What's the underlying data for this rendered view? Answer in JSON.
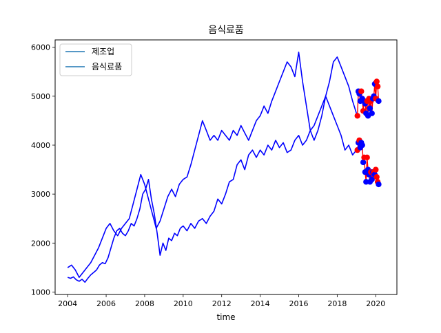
{
  "chart_data": {
    "type": "line",
    "title": "음식료품",
    "xlabel": "time",
    "ylabel": "",
    "xlim": [
      2003.35,
      2021.1
    ],
    "ylim": [
      950,
      6150
    ],
    "grid": false,
    "legend_placement": "top-left",
    "x_ticks": [
      2004,
      2006,
      2008,
      2010,
      2012,
      2014,
      2016,
      2018,
      2020
    ],
    "x_tick_labels": [
      "2004",
      "2006",
      "2008",
      "2010",
      "2012",
      "2014",
      "2016",
      "2018",
      "2020"
    ],
    "y_ticks": [
      1000,
      2000,
      3000,
      4000,
      5000,
      6000
    ],
    "y_tick_labels": [
      "1000",
      "2000",
      "3000",
      "4000",
      "5000",
      "6000"
    ],
    "colors": {
      "series": "#0000ff",
      "legend_line": "#1f77b4",
      "highlight_line": "#ff0000",
      "marker_low": "#ff0000",
      "marker_high": "#0000ff"
    },
    "series": [
      {
        "name": "제조업",
        "x": [
          2004.0,
          2004.15,
          2004.3,
          2004.45,
          2004.6,
          2004.75,
          2004.9,
          2005.05,
          2005.2,
          2005.35,
          2005.5,
          2005.65,
          2005.8,
          2005.95,
          2006.1,
          2006.25,
          2006.4,
          2006.55,
          2006.7,
          2006.85,
          2007.0,
          2007.15,
          2007.3,
          2007.45,
          2007.6,
          2007.75,
          2007.9,
          2008.05,
          2008.2,
          2008.35,
          2008.5,
          2008.65,
          2008.8,
          2008.95,
          2009.1,
          2009.25,
          2009.4,
          2009.55,
          2009.7,
          2009.85,
          2010.0,
          2010.2,
          2010.4,
          2010.6,
          2010.8,
          2011.0,
          2011.2,
          2011.4,
          2011.6,
          2011.8,
          2012.0,
          2012.2,
          2012.4,
          2012.6,
          2012.8,
          2013.0,
          2013.2,
          2013.4,
          2013.6,
          2013.8,
          2014.0,
          2014.2,
          2014.4,
          2014.6,
          2014.8,
          2015.0,
          2015.2,
          2015.4,
          2015.6,
          2015.8,
          2016.0,
          2016.2,
          2016.4,
          2016.6,
          2016.8,
          2017.0,
          2017.2,
          2017.4,
          2017.6,
          2017.8,
          2018.0,
          2018.2,
          2018.4,
          2018.6,
          2018.8,
          2019.0
        ],
        "y": [
          1300,
          1280,
          1310,
          1250,
          1220,
          1260,
          1200,
          1280,
          1350,
          1400,
          1450,
          1550,
          1600,
          1580,
          1700,
          1900,
          2100,
          2250,
          2300,
          2200,
          2150,
          2250,
          2400,
          2350,
          2500,
          2700,
          3000,
          3100,
          3300,
          2900,
          2600,
          2200,
          1750,
          2000,
          1850,
          2100,
          2050,
          2200,
          2150,
          2300,
          2350,
          2250,
          2400,
          2300,
          2450,
          2500,
          2400,
          2550,
          2650,
          2900,
          2800,
          3000,
          3250,
          3300,
          3600,
          3700,
          3500,
          3800,
          3900,
          3750,
          3900,
          3800,
          4000,
          3900,
          4100,
          3950,
          4050,
          3850,
          3900,
          4100,
          4200,
          4000,
          4100,
          4300,
          4400,
          4600,
          4800,
          5000,
          4800,
          4600,
          4400,
          4200,
          3900,
          4000,
          3800,
          3900
        ]
      },
      {
        "name": "음식료품",
        "x": [
          2004.0,
          2004.2,
          2004.4,
          2004.6,
          2004.8,
          2005.0,
          2005.2,
          2005.4,
          2005.6,
          2005.8,
          2006.0,
          2006.2,
          2006.4,
          2006.6,
          2006.8,
          2007.0,
          2007.2,
          2007.4,
          2007.6,
          2007.8,
          2008.0,
          2008.2,
          2008.4,
          2008.6,
          2008.8,
          2009.0,
          2009.2,
          2009.4,
          2009.6,
          2009.8,
          2010.0,
          2010.2,
          2010.4,
          2010.6,
          2010.8,
          2011.0,
          2011.2,
          2011.4,
          2011.6,
          2011.8,
          2012.0,
          2012.2,
          2012.4,
          2012.6,
          2012.8,
          2013.0,
          2013.2,
          2013.4,
          2013.6,
          2013.8,
          2014.0,
          2014.2,
          2014.4,
          2014.6,
          2014.8,
          2015.0,
          2015.2,
          2015.4,
          2015.6,
          2015.8,
          2016.0,
          2016.2,
          2016.4,
          2016.6,
          2016.8,
          2017.0,
          2017.2,
          2017.4,
          2017.6,
          2017.8,
          2018.0,
          2018.2,
          2018.4,
          2018.6,
          2018.8,
          2019.0
        ],
        "y": [
          1500,
          1550,
          1450,
          1300,
          1400,
          1500,
          1600,
          1750,
          1900,
          2100,
          2300,
          2400,
          2250,
          2150,
          2300,
          2400,
          2500,
          2800,
          3100,
          3400,
          3200,
          2900,
          2600,
          2300,
          2450,
          2700,
          2950,
          3100,
          2950,
          3200,
          3300,
          3350,
          3600,
          3900,
          4200,
          4500,
          4300,
          4100,
          4200,
          4100,
          4300,
          4200,
          4100,
          4300,
          4200,
          4400,
          4250,
          4100,
          4300,
          4500,
          4600,
          4800,
          4650,
          4900,
          5100,
          5300,
          5500,
          5700,
          5600,
          5400,
          5900,
          5300,
          4800,
          4300,
          4100,
          4300,
          4600,
          5000,
          5300,
          5700,
          5800,
          5600,
          5400,
          5200,
          4900,
          4650
        ]
      }
    ],
    "highlights": [
      {
        "x": [
          2019.05,
          2019.1,
          2019.15,
          2019.2,
          2019.25,
          2019.3,
          2019.35,
          2019.4,
          2019.45,
          2019.5,
          2019.55,
          2019.6,
          2019.65,
          2019.7,
          2019.75,
          2019.8,
          2019.85,
          2019.9,
          2019.95,
          2020.0,
          2020.05,
          2020.1,
          2020.15
        ],
        "y": [
          4600,
          5100,
          5050,
          4900,
          5100,
          4950,
          4700,
          4900,
          4850,
          4650,
          4900,
          4600,
          4950,
          4750,
          4900,
          4650,
          4950,
          5000,
          5250,
          4950,
          5300,
          5200,
          4900
        ],
        "marker_colors": [
          "low",
          "high",
          "high",
          "high",
          "low",
          "high",
          "low",
          "high",
          "high",
          "high",
          "low",
          "high",
          "low",
          "high",
          "low",
          "high",
          "high",
          "high",
          "high",
          "low",
          "low",
          "low",
          "high"
        ]
      },
      {
        "x": [
          2019.05,
          2019.1,
          2019.15,
          2019.2,
          2019.25,
          2019.3,
          2019.35,
          2019.4,
          2019.45,
          2019.5,
          2019.55,
          2019.6,
          2019.65,
          2019.7,
          2019.75,
          2019.8,
          2019.85,
          2019.9,
          2019.95,
          2020.0,
          2020.05,
          2020.1,
          2020.15
        ],
        "y": [
          3900,
          4050,
          4100,
          3950,
          4050,
          4000,
          3650,
          3750,
          3450,
          3250,
          3750,
          3500,
          3400,
          3250,
          3450,
          3300,
          3450,
          3450,
          3400,
          3500,
          3350,
          3250,
          3200
        ],
        "marker_colors": [
          "low",
          "high",
          "low",
          "high",
          "high",
          "high",
          "high",
          "low",
          "high",
          "high",
          "low",
          "high",
          "high",
          "high",
          "low",
          "high",
          "high",
          "low",
          "high",
          "low",
          "low",
          "low",
          "high"
        ]
      }
    ]
  }
}
